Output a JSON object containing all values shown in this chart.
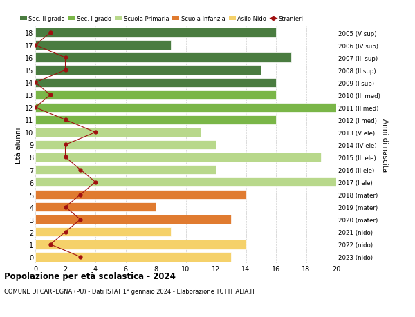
{
  "ages": [
    18,
    17,
    16,
    15,
    14,
    13,
    12,
    11,
    10,
    9,
    8,
    7,
    6,
    5,
    4,
    3,
    2,
    1,
    0
  ],
  "years": [
    "2005 (V sup)",
    "2006 (IV sup)",
    "2007 (III sup)",
    "2008 (II sup)",
    "2009 (I sup)",
    "2010 (III med)",
    "2011 (II med)",
    "2012 (I med)",
    "2013 (V ele)",
    "2014 (IV ele)",
    "2015 (III ele)",
    "2016 (II ele)",
    "2017 (I ele)",
    "2018 (mater)",
    "2019 (mater)",
    "2020 (mater)",
    "2021 (nido)",
    "2022 (nido)",
    "2023 (nido)"
  ],
  "bar_values": [
    16,
    9,
    17,
    15,
    16,
    16,
    20,
    16,
    11,
    12,
    19,
    12,
    20,
    14,
    8,
    13,
    9,
    14,
    13
  ],
  "bar_colors": [
    "#4a7c40",
    "#4a7c40",
    "#4a7c40",
    "#4a7c40",
    "#4a7c40",
    "#7ab648",
    "#7ab648",
    "#7ab648",
    "#b8d88b",
    "#b8d88b",
    "#b8d88b",
    "#b8d88b",
    "#b8d88b",
    "#e07b30",
    "#e07b30",
    "#e07b30",
    "#f5d16a",
    "#f5d16a",
    "#f5d16a"
  ],
  "stranieri": [
    1,
    0,
    2,
    2,
    0,
    1,
    0,
    2,
    4,
    2,
    2,
    3,
    4,
    3,
    2,
    3,
    2,
    1,
    3
  ],
  "xlim": [
    0,
    20
  ],
  "xticks": [
    0,
    2,
    4,
    6,
    8,
    10,
    12,
    14,
    16,
    18,
    20
  ],
  "title": "Popolazione per età scolastica - 2024",
  "subtitle": "COMUNE DI CARPEGNA (PU) - Dati ISTAT 1° gennaio 2024 - Elaborazione TUTTITALIA.IT",
  "ylabel": "Età alunni",
  "ylabel2": "Anni di nascita",
  "legend_labels": [
    "Sec. II grado",
    "Sec. I grado",
    "Scuola Primaria",
    "Scuola Infanzia",
    "Asilo Nido",
    "Stranieri"
  ],
  "legend_colors": [
    "#4a7c40",
    "#7ab648",
    "#b8d88b",
    "#e07b30",
    "#f5d16a",
    "#a01010"
  ],
  "color_stranieri": "#a01010",
  "bar_height": 0.75,
  "bg_color": "#ffffff",
  "grid_color": "#cccccc",
  "ylim_min": -0.5,
  "ylim_max": 18.5
}
